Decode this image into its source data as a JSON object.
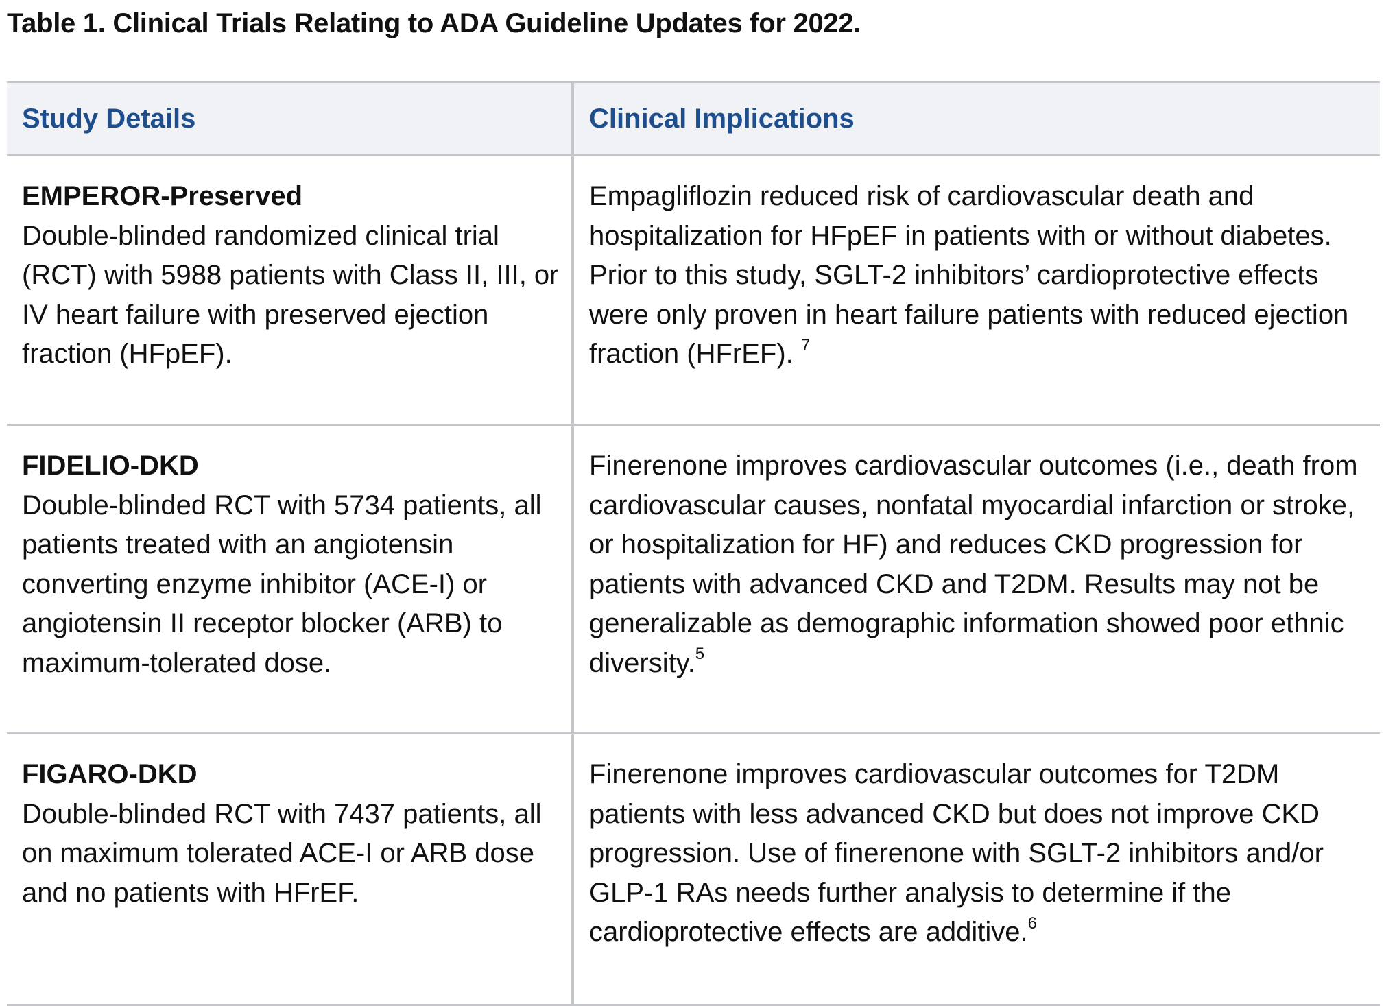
{
  "caption": "Table 1. Clinical Trials Relating to ADA Guideline Updates for 2022.",
  "header": {
    "col1": "Study Details",
    "col2": "Clinical Implications"
  },
  "rows": [
    {
      "trial": "EMPEROR-Preserved",
      "details": "Double-blinded randomized clinical trial (RCT) with 5988 patients with Class II, III, or IV heart failure with preserved ejection fraction (HFpEF).",
      "implications": "Empagliflozin reduced risk of cardiovascular death and hospitalization for HFpEF in patients with or without diabetes. Prior to this study, SGLT-2 inhibitors’ cardioprotective effects were only proven in heart failure patients with reduced ejection fraction (HFrEF). ",
      "ref": "7"
    },
    {
      "trial": "FIDELIO-DKD",
      "details": "Double-blinded RCT with 5734 patients, all patients treated with an angiotensin converting enzyme inhibitor (ACE-I) or angiotensin II receptor blocker (ARB) to maximum-tolerated dose.",
      "implications": "Finerenone improves cardiovascular outcomes (i.e., death from cardiovascular causes, nonfatal myocardial infarction or stroke, or hospitalization for HF) and reduces CKD progression for patients with advanced CKD and T2DM. Results may not be generalizable as demographic information showed poor ethnic diversity.",
      "ref": "5"
    },
    {
      "trial": "FIGARO-DKD",
      "details": "Double-blinded RCT with 7437 patients, all on maximum tolerated ACE-I or ARB dose and no patients with HFrEF.",
      "implications": "Finerenone improves cardiovascular outcomes for T2DM patients with less advanced CKD but does not improve CKD progression. Use of finerenone with SGLT-2 inhibitors and/or GLP-1 RAs needs further analysis to determine if the cardioprotective effects are additive.",
      "ref": "6"
    }
  ]
}
